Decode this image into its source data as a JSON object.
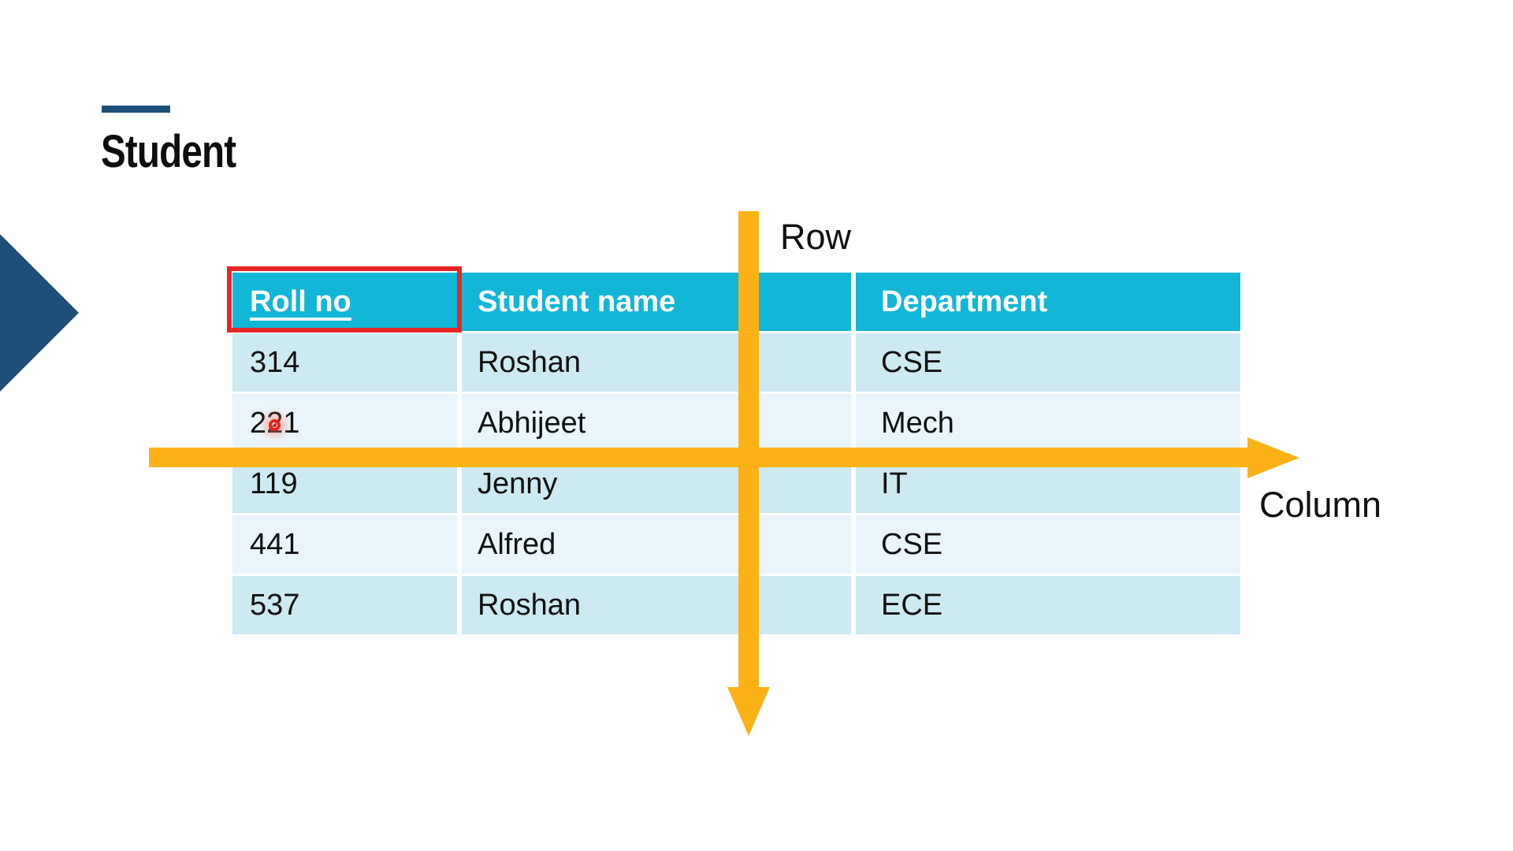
{
  "slide": {
    "title": "Student",
    "row_axis_label": "Row",
    "column_axis_label": "Column"
  },
  "table": {
    "columns": [
      "Roll no",
      "Student name",
      "Department"
    ],
    "rows": [
      {
        "roll": "314",
        "name": "Roshan",
        "dept": "CSE"
      },
      {
        "roll": "221",
        "name": "Abhijeet",
        "dept": "Mech"
      },
      {
        "roll": "119",
        "name": "Jenny",
        "dept": "IT"
      },
      {
        "roll": "441",
        "name": "Alfred",
        "dept": "CSE"
      },
      {
        "roll": "537",
        "name": "Roshan",
        "dept": "ECE"
      }
    ]
  },
  "annotations": {
    "highlighted_header": "Roll no",
    "laser_pointer_on_value": "221"
  },
  "colors": {
    "header_teal": "#12B6D6",
    "row_dark": "#CDE9F1",
    "row_light": "#E9F5FA",
    "arrow_orange": "#FCB216",
    "highlight_red": "#E62625",
    "accent_navy": "#1F4E79"
  }
}
